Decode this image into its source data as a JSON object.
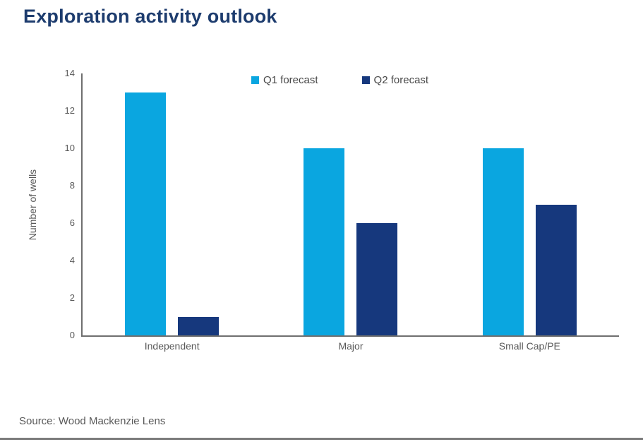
{
  "title": "Exploration activity outlook",
  "source_note": "Source: Wood Mackenzie Lens",
  "colors": {
    "title_navy": "#1d3c6e",
    "q1_blue": "#0aa6e0",
    "q2_navy": "#16387d",
    "axis_gray": "#6f6f6f",
    "label_gray": "#595959",
    "bottom_rule_gray": "#7c7c7c"
  },
  "chart_data": {
    "type": "bar",
    "categories": [
      "Independent",
      "Major",
      "Small Cap/PE"
    ],
    "series": [
      {
        "name": "Q1 forecast",
        "color": "#0aa6e0",
        "values": [
          13,
          10,
          10
        ]
      },
      {
        "name": "Q2 forecast",
        "color": "#16387d",
        "values": [
          1,
          6,
          7
        ]
      }
    ],
    "title": "Exploration activity outlook",
    "xlabel": "",
    "ylabel": "Number of wells",
    "ylim": [
      0,
      14
    ],
    "yticks": [
      0,
      2,
      4,
      6,
      8,
      10,
      12,
      14
    ],
    "grid": false,
    "legend_position": "top-center"
  }
}
